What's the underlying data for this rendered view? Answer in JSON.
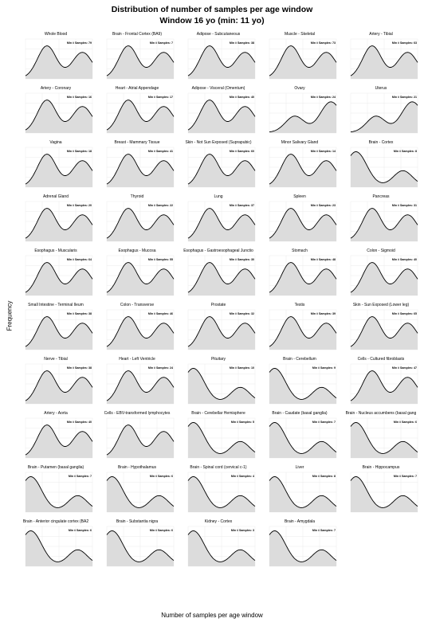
{
  "title": "Distribution of number of samples per age window",
  "subtitle": "Window 16 yo (min: 11 yo)",
  "ylabel": "Frequency",
  "xlabel": "Number of samples per age window",
  "chart_data": {
    "type": "area",
    "facets": [
      {
        "title": "Whole Blood",
        "min_samples": 79,
        "shape": "A"
      },
      {
        "title": "Brain - Frontal Cortex (BA9)",
        "min_samples": 7,
        "shape": "A"
      },
      {
        "title": "Adipose - Subcutaneous",
        "min_samples": 38,
        "shape": "A"
      },
      {
        "title": "Muscle - Skeletal",
        "min_samples": 73,
        "shape": "A"
      },
      {
        "title": "Artery - Tibial",
        "min_samples": 63,
        "shape": "A"
      },
      {
        "title": "Artery - Coronary",
        "min_samples": 16,
        "shape": "A"
      },
      {
        "title": "Heart - Atrial Appendage",
        "min_samples": 17,
        "shape": "A"
      },
      {
        "title": "Adipose - Visceral (Omentum)",
        "min_samples": 40,
        "shape": "A"
      },
      {
        "title": "Ovary",
        "min_samples": 24,
        "shape": "C"
      },
      {
        "title": "Uterus",
        "min_samples": 21,
        "shape": "C"
      },
      {
        "title": "Vagina",
        "min_samples": 18,
        "shape": "A"
      },
      {
        "title": "Breast - Mammary Tissue",
        "min_samples": 41,
        "shape": "A"
      },
      {
        "title": "Skin - Not Sun Exposed (Suprapubic)",
        "min_samples": 60,
        "shape": "A"
      },
      {
        "title": "Minor Salivary Gland",
        "min_samples": 14,
        "shape": "A"
      },
      {
        "title": "Brain - Cortex",
        "min_samples": 8,
        "shape": "B"
      },
      {
        "title": "Adrenal Gland",
        "min_samples": 20,
        "shape": "A"
      },
      {
        "title": "Thyroid",
        "min_samples": 22,
        "shape": "A"
      },
      {
        "title": "Lung",
        "min_samples": 37,
        "shape": "A"
      },
      {
        "title": "Spleen",
        "min_samples": 23,
        "shape": "A"
      },
      {
        "title": "Pancreas",
        "min_samples": 31,
        "shape": "A"
      },
      {
        "title": "Esophagus - Muscularis",
        "min_samples": 64,
        "shape": "A"
      },
      {
        "title": "Esophagus - Mucosa",
        "min_samples": 55,
        "shape": "A"
      },
      {
        "title": "Esophagus - Gastroesophageal Junctio",
        "min_samples": 30,
        "shape": "A"
      },
      {
        "title": "Stomach",
        "min_samples": 48,
        "shape": "A"
      },
      {
        "title": "Colon - Sigmoid",
        "min_samples": 40,
        "shape": "A"
      },
      {
        "title": "Small Intestine - Terminal Ileum",
        "min_samples": 38,
        "shape": "A"
      },
      {
        "title": "Colon - Transverse",
        "min_samples": 46,
        "shape": "A"
      },
      {
        "title": "Prostate",
        "min_samples": 32,
        "shape": "A"
      },
      {
        "title": "Testis",
        "min_samples": 39,
        "shape": "A"
      },
      {
        "title": "Skin - Sun Exposed (Lower leg)",
        "min_samples": 65,
        "shape": "A"
      },
      {
        "title": "Nerve - Tibial",
        "min_samples": 38,
        "shape": "A"
      },
      {
        "title": "Heart - Left Ventricle",
        "min_samples": 24,
        "shape": "A"
      },
      {
        "title": "Pituitary",
        "min_samples": 10,
        "shape": "B"
      },
      {
        "title": "Brain - Cerebellum",
        "min_samples": 9,
        "shape": "B"
      },
      {
        "title": "Cells - Cultured fibroblasts",
        "min_samples": 47,
        "shape": "A"
      },
      {
        "title": "Artery - Aorta",
        "min_samples": 40,
        "shape": "A"
      },
      {
        "title": "Cells - EBV-transformed lymphocytes",
        "min_samples": null,
        "shape": "A"
      },
      {
        "title": "Brain - Cerebellar Hemisphere",
        "min_samples": 5,
        "shape": "B"
      },
      {
        "title": "Brain - Caudate (basal ganglia)",
        "min_samples": 7,
        "shape": "B"
      },
      {
        "title": "Brain - Nucleus accumbens (basal gang",
        "min_samples": 6,
        "shape": "B"
      },
      {
        "title": "Brain - Putamen (basal ganglia)",
        "min_samples": 7,
        "shape": "B"
      },
      {
        "title": "Brain - Hypothalamus",
        "min_samples": 6,
        "shape": "B"
      },
      {
        "title": "Brain - Spinal cord (cervical c-1)",
        "min_samples": 4,
        "shape": "B"
      },
      {
        "title": "Liver",
        "min_samples": 8,
        "shape": "B"
      },
      {
        "title": "Brain - Hippocampus",
        "min_samples": 7,
        "shape": "B"
      },
      {
        "title": "Brain - Anterior cingulate cortex (BA2",
        "min_samples": 6,
        "shape": "B"
      },
      {
        "title": "Brain - Substantia nigra",
        "min_samples": 6,
        "shape": "B"
      },
      {
        "title": "Kidney - Cortex",
        "min_samples": 3,
        "shape": "B"
      },
      {
        "title": "Brain - Amygdala",
        "min_samples": 7,
        "shape": "B"
      }
    ],
    "label_prefix": "Min # Samples: ",
    "grid": true,
    "fill_color": "#dcdcdc",
    "line_color": "#000000",
    "panel_color": "#ebebeb"
  }
}
